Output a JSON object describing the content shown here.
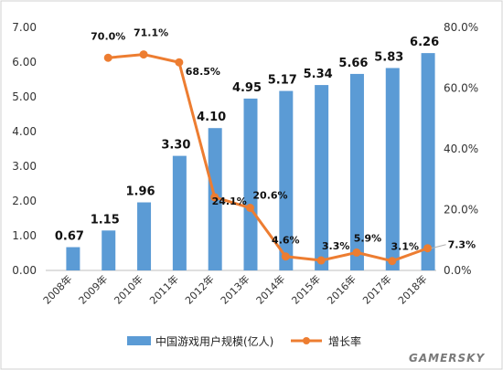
{
  "chart_data": {
    "type": "bar",
    "categories": [
      "2008年",
      "2009年",
      "2010年",
      "2011年",
      "2012年",
      "2013年",
      "2014年",
      "2015年",
      "2016年",
      "2017年",
      "2018年"
    ],
    "series": [
      {
        "name": "中国游戏用户规模(亿人)",
        "type": "bar",
        "axis": "left",
        "color": "#5b9bd5",
        "values": [
          0.67,
          1.15,
          1.96,
          3.3,
          4.1,
          4.95,
          5.17,
          5.34,
          5.66,
          5.83,
          6.26
        ],
        "labels": [
          "0.67",
          "1.15",
          "1.96",
          "3.30",
          "4.10",
          "4.95",
          "5.17",
          "5.34",
          "5.66",
          "5.83",
          "6.26"
        ]
      },
      {
        "name": "增长率",
        "type": "line",
        "axis": "right",
        "color": "#ed7d31",
        "values": [
          null,
          70.0,
          71.1,
          68.5,
          24.1,
          20.6,
          4.6,
          3.3,
          5.9,
          3.1,
          7.3
        ],
        "labels": [
          "",
          "70.0%",
          "71.1%",
          "68.5%",
          "24.1%",
          "20.6%",
          "4.6%",
          "3.3%",
          "5.9%",
          "3.1%",
          "7.3%"
        ]
      }
    ],
    "ylim_left": [
      0,
      7
    ],
    "yticks_left": [
      "0.00",
      "1.00",
      "2.00",
      "3.00",
      "4.00",
      "5.00",
      "6.00",
      "7.00"
    ],
    "ylim_right": [
      0,
      80
    ],
    "yticks_right": [
      "0.0%",
      "20.0%",
      "40.0%",
      "60.0%",
      "80.0%"
    ],
    "grid": false,
    "legend_position": "bottom"
  },
  "watermark": "GAMERSKY"
}
